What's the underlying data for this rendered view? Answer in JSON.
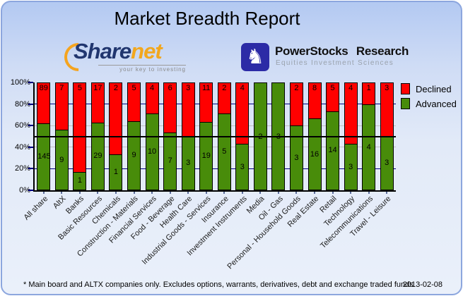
{
  "header": {
    "title": "Market Breadth Report",
    "sharenet_logo": {
      "word_part1": "Share",
      "word_part2": "net",
      "tagline": "your key to investing"
    },
    "powerstocks_logo": {
      "name": "PowerStocks Research",
      "tagline": "Equities Investment Sciences",
      "icon": "knight-chess-icon"
    }
  },
  "chart_data": {
    "type": "bar",
    "stacked": true,
    "normalized_to_percent": true,
    "title": "Market Breadth Report",
    "categories": [
      "All share",
      "AltX",
      "Banks",
      "Basic Resources",
      "Chemicals",
      "Construction - Materials",
      "Financial Services",
      "Food - Beverage",
      "Health Care",
      "Industrial Goods - Services",
      "Insurance",
      "Investment Instruments",
      "Media",
      "Oil - Gas",
      "Personal - Household Goods",
      "Real Estate",
      "Retail",
      "Technology",
      "Telecommunications",
      "Travel - Leisure"
    ],
    "series": [
      {
        "name": "Declined",
        "color": "#ff0000",
        "values": [
          89,
          7,
          5,
          17,
          2,
          5,
          4,
          6,
          3,
          11,
          2,
          4,
          0,
          0,
          2,
          8,
          5,
          4,
          1,
          3
        ]
      },
      {
        "name": "Advanced",
        "color": "#488c0a",
        "values": [
          145,
          9,
          1,
          29,
          1,
          9,
          10,
          7,
          3,
          19,
          5,
          3,
          2,
          3,
          3,
          16,
          14,
          3,
          4,
          3
        ]
      }
    ],
    "y_ticks": [
      "100%",
      "80%",
      "60%",
      "40%",
      "20%",
      "0%"
    ],
    "ylim": [
      0,
      100
    ],
    "reference_line_pct": 50,
    "grid": {
      "navy_lines_pct": [
        80,
        20
      ],
      "silver_lines_pct": [
        60,
        40
      ]
    },
    "legend_position": "top-right"
  },
  "footer": {
    "note": "* Main board and ALTX companies only. Excludes options, warrants, derivatives, debt and exchange traded funds",
    "date": "2013-02-08"
  },
  "colors": {
    "declined": "#ff0000",
    "advanced": "#488c0a",
    "grid_navy": "#000080",
    "grid_silver": "#c0c0c0",
    "reference_line": "#000000",
    "page_border": "#8ca6de"
  }
}
